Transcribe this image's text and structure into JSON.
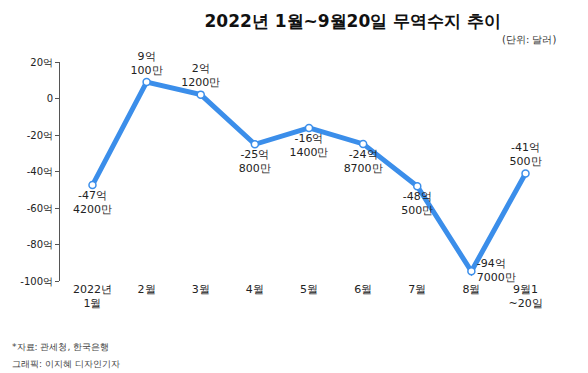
{
  "chart_data": {
    "type": "line",
    "title": "2022년 1월~9월20일 무역수지 추이",
    "subtitle": "(단위: 달러)",
    "categories": [
      "2022년\n1월",
      "2월",
      "3월",
      "4월",
      "5월",
      "6월",
      "7월",
      "8월",
      "9월1\n~20일"
    ],
    "values": [
      -47.42,
      9.01,
      2.12,
      -25.08,
      -16.14,
      -24.87,
      -48.05,
      -94.7,
      -41.05
    ],
    "value_labels": [
      "-47억\n4200만",
      "9억\n100만",
      "2억\n1200만",
      "-25억\n800만",
      "-16억\n1400만",
      "-24억\n8700만",
      "-48억\n500만",
      "-94억\n7000만",
      "-41억\n500만"
    ],
    "data_labels": true,
    "color": "#3b8eea",
    "marker": "circle",
    "line_style": "solid",
    "ylim": [
      -100,
      20
    ],
    "yticks": [
      {
        "value": 20,
        "label": "20억"
      },
      0,
      {
        "value": -20,
        "label": "-20억"
      },
      {
        "value": -40,
        "label": "-40억"
      },
      {
        "value": -60,
        "label": "-60억"
      },
      {
        "value": -80,
        "label": "-80억"
      },
      {
        "value": -100,
        "label": "-100억"
      }
    ],
    "grid": false,
    "annotations": [
      "*자료: 관세청, 한국은행",
      "그래픽: 이지혜 디자인기자"
    ]
  }
}
